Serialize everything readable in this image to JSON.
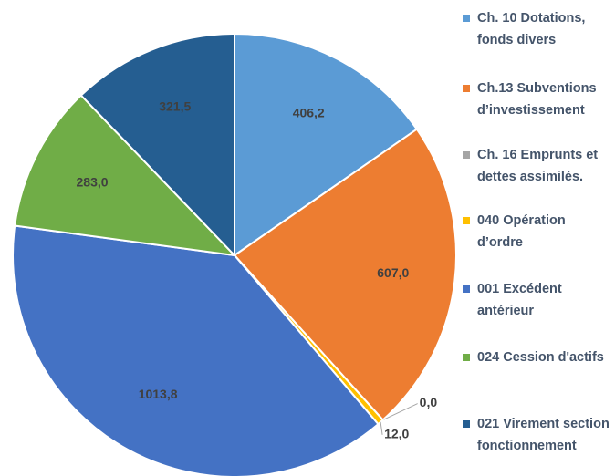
{
  "chart_data": {
    "type": "pie",
    "categories": [
      "Ch. 10 Dotations, fonds divers",
      "Ch.13 Subventions d’investissement",
      "Ch. 16 Emprunts et dettes assimilés.",
      "040 Opération d’ordre",
      "001 Excédent antérieur",
      "024 Cession d'actifs",
      "021 Virement section fonctionnement"
    ],
    "values": [
      406.2,
      607.0,
      0.0,
      12.0,
      1013.8,
      283.0,
      321.5
    ],
    "value_labels": [
      "406,2",
      "607,0",
      "0,0",
      "12,0",
      "1013,8",
      "283,0",
      "321,5"
    ],
    "colors": [
      "#5b9bd5",
      "#ed7d31",
      "#a5a5a5",
      "#ffc000",
      "#4472c4",
      "#70ad47",
      "#255e91"
    ],
    "legend": "right"
  }
}
